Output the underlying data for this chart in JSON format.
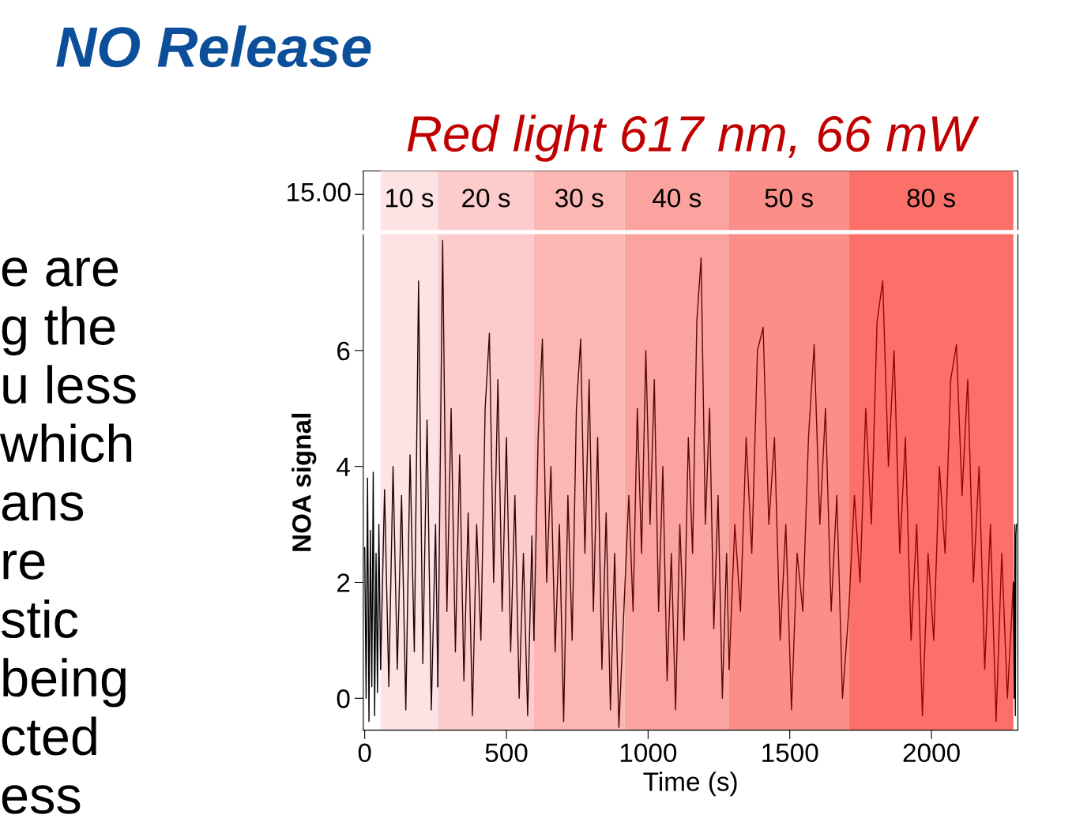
{
  "chart_data": {
    "type": "line",
    "title": "Red light 617 nm, 66 mW",
    "xlabel": "Time (s)",
    "ylabel": "NOA signal",
    "annotations": [
      "NO Release",
      "e are\ng the\nu less\nwhich\nans\nre\nstic\nbeing\ncted\ness",
      "15.00"
    ],
    "xlim": [
      -5,
      2305
    ],
    "ylim": [
      -0.55,
      8.0
    ],
    "xticks": [
      0,
      500,
      1000,
      1500,
      2000
    ],
    "yticks": [
      0,
      2,
      4,
      6
    ],
    "bands": [
      {
        "axis": "x",
        "from": 56,
        "to": 258,
        "label": "10 s",
        "color": "#fde3e3"
      },
      {
        "axis": "x",
        "from": 258,
        "to": 597,
        "label": "20 s",
        "color": "#fccccc"
      },
      {
        "axis": "x",
        "from": 597,
        "to": 917,
        "label": "30 s",
        "color": "#fcb6b3"
      },
      {
        "axis": "x",
        "from": 917,
        "to": 1286,
        "label": "40 s",
        "color": "#fba39f"
      },
      {
        "axis": "x",
        "from": 1286,
        "to": 1708,
        "label": "50 s",
        "color": "#fb8e88"
      },
      {
        "axis": "x",
        "from": 1708,
        "to": 2289,
        "label": "80 s",
        "color": "#fb7068"
      }
    ],
    "series": [
      {
        "color": "#000000",
        "x": [
          0,
          5,
          10,
          15,
          20,
          25,
          30,
          35,
          40,
          45,
          50,
          56
        ],
        "values": [
          2.6,
          0,
          3.8,
          -0.4,
          2.9,
          0.2,
          3.9,
          -0.3,
          2.5,
          0.1,
          3.0,
          0.5
        ]
      },
      {
        "color": "#1c0404",
        "x": [
          56,
          70,
          85,
          100,
          115,
          130,
          145,
          160,
          175,
          190,
          205,
          220,
          235,
          250,
          258
        ],
        "values": [
          0.5,
          3.6,
          0.2,
          4.0,
          0.5,
          3.5,
          -0.2,
          4.2,
          0.8,
          7.2,
          0.6,
          4.8,
          -0.2,
          3.0,
          0.2
        ]
      },
      {
        "color": "#2e0606",
        "x": [
          258,
          275,
          290,
          305,
          320,
          335,
          350,
          365,
          380,
          395,
          410,
          425,
          440,
          455,
          470,
          485,
          500,
          515,
          530,
          545,
          560,
          575,
          590,
          597
        ],
        "values": [
          0.2,
          7.9,
          1.5,
          5.0,
          0.8,
          4.2,
          0.3,
          3.2,
          -0.3,
          3.0,
          1.0,
          5.0,
          6.3,
          2.0,
          5.5,
          1.5,
          4.5,
          0.8,
          3.5,
          0.0,
          2.5,
          -0.3,
          2.8,
          1.0
        ]
      },
      {
        "color": "#3e0707",
        "x": [
          597,
          612,
          627,
          642,
          657,
          672,
          687,
          702,
          717,
          732,
          747,
          762,
          777,
          792,
          807,
          822,
          837,
          852,
          867,
          882,
          897,
          917
        ],
        "values": [
          1.0,
          4.5,
          6.2,
          2.0,
          4.0,
          0.8,
          3.0,
          -0.4,
          3.5,
          1.0,
          5.0,
          6.2,
          2.5,
          5.5,
          1.5,
          4.5,
          0.5,
          3.2,
          -0.2,
          2.5,
          -0.5,
          1.8
        ]
      },
      {
        "color": "#560707",
        "x": [
          917,
          932,
          947,
          962,
          977,
          992,
          1007,
          1022,
          1037,
          1052,
          1067,
          1082,
          1097,
          1112,
          1127,
          1142,
          1157,
          1172,
          1187,
          1202,
          1217,
          1232,
          1247,
          1262,
          1277,
          1286
        ],
        "values": [
          1.8,
          3.5,
          1.5,
          5.0,
          2.5,
          6.0,
          3.0,
          5.5,
          1.5,
          4.0,
          0.3,
          2.5,
          -0.2,
          3.0,
          1.0,
          4.5,
          2.5,
          6.5,
          7.6,
          3.0,
          5.0,
          1.2,
          3.5,
          0.0,
          2.5,
          0.5
        ]
      },
      {
        "color": "#760606",
        "x": [
          1286,
          1306,
          1326,
          1346,
          1366,
          1386,
          1406,
          1426,
          1446,
          1466,
          1486,
          1506,
          1526,
          1546,
          1566,
          1586,
          1606,
          1626,
          1646,
          1666,
          1686,
          1708
        ],
        "values": [
          0.5,
          3.0,
          1.5,
          4.5,
          2.5,
          6.0,
          6.4,
          3.0,
          4.5,
          1.0,
          3.0,
          -0.2,
          2.5,
          1.5,
          4.5,
          6.1,
          3.0,
          5.0,
          1.5,
          3.5,
          0.0,
          1.5
        ]
      },
      {
        "color": "#940404",
        "x": [
          1708,
          1728,
          1748,
          1768,
          1788,
          1808,
          1828,
          1848,
          1868,
          1888,
          1908,
          1928,
          1948,
          1968,
          1988,
          2008,
          2028,
          2048,
          2068,
          2088,
          2108,
          2128,
          2148,
          2168,
          2188,
          2208,
          2228,
          2248,
          2268,
          2289
        ],
        "values": [
          1.5,
          3.5,
          2.0,
          5.0,
          3.0,
          6.5,
          7.2,
          4.0,
          6.0,
          2.5,
          4.5,
          1.0,
          3.0,
          -0.3,
          2.5,
          1.0,
          4.0,
          2.5,
          5.5,
          6.1,
          3.5,
          5.5,
          2.0,
          4.0,
          0.5,
          3.0,
          -0.4,
          2.5,
          0.0,
          2.0
        ]
      },
      {
        "color": "#000000",
        "x": [
          2289,
          2292,
          2294,
          2296,
          2298,
          2300
        ],
        "values": [
          2.0,
          0.0,
          3.0,
          -0.3,
          2.8,
          3.0
        ]
      }
    ]
  }
}
